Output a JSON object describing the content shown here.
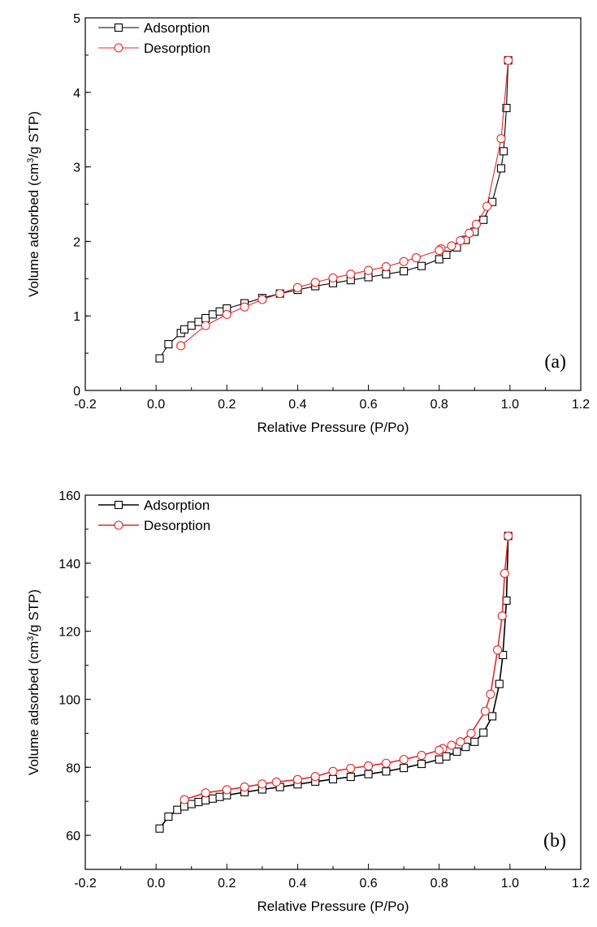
{
  "chart_data": [
    {
      "type": "line",
      "panel_label": "(a)",
      "xlabel": "Relative Pressure (P/Po)",
      "ylabel_main": "Volume adsorbed (cm",
      "ylabel_sup": "3",
      "ylabel_rest": "/g STP)",
      "xlim": [
        -0.2,
        1.2
      ],
      "ylim": [
        0,
        5
      ],
      "xticks": [
        "-0.2",
        "0.0",
        "0.2",
        "0.4",
        "0.6",
        "0.8",
        "1.0",
        "1.2"
      ],
      "yticks": [
        "0",
        "1",
        "2",
        "3",
        "4",
        "5"
      ],
      "legend_position": "top-left",
      "grid": false,
      "series": [
        {
          "name": "Adsorption",
          "marker": "square",
          "color": "#000000",
          "x": [
            0.01,
            0.035,
            0.07,
            0.08,
            0.1,
            0.12,
            0.14,
            0.16,
            0.18,
            0.2,
            0.25,
            0.3,
            0.35,
            0.4,
            0.45,
            0.5,
            0.55,
            0.6,
            0.65,
            0.7,
            0.75,
            0.8,
            0.82,
            0.85,
            0.875,
            0.9,
            0.925,
            0.95,
            0.975,
            0.982,
            0.99,
            0.995
          ],
          "y": [
            0.43,
            0.62,
            0.77,
            0.82,
            0.87,
            0.92,
            0.97,
            1.02,
            1.06,
            1.1,
            1.17,
            1.24,
            1.3,
            1.35,
            1.4,
            1.44,
            1.48,
            1.52,
            1.56,
            1.6,
            1.67,
            1.76,
            1.82,
            1.92,
            2.02,
            2.13,
            2.29,
            2.53,
            2.98,
            3.21,
            3.79,
            4.43
          ]
        },
        {
          "name": "Desorption",
          "marker": "circle",
          "color": "#e8282b",
          "x": [
            0.995,
            0.975,
            0.935,
            0.905,
            0.885,
            0.86,
            0.835,
            0.805,
            0.8,
            0.735,
            0.7,
            0.65,
            0.6,
            0.55,
            0.5,
            0.45,
            0.4,
            0.35,
            0.3,
            0.25,
            0.2,
            0.14,
            0.07
          ],
          "y": [
            4.43,
            3.38,
            2.47,
            2.23,
            2.11,
            2.01,
            1.94,
            1.9,
            1.88,
            1.78,
            1.73,
            1.66,
            1.61,
            1.56,
            1.51,
            1.45,
            1.38,
            1.3,
            1.22,
            1.12,
            1.02,
            0.87,
            0.6
          ]
        }
      ]
    },
    {
      "type": "line",
      "panel_label": "(b)",
      "xlabel": "Relative Pressure (P/Po)",
      "ylabel_main": "Volume adsorbed (cm",
      "ylabel_sup": "3",
      "ylabel_rest": "/g STP)",
      "xlim": [
        -0.2,
        1.2
      ],
      "ylim": [
        50,
        160
      ],
      "xticks": [
        "-0.2",
        "0.0",
        "0.2",
        "0.4",
        "0.6",
        "0.8",
        "1.0",
        "1.2"
      ],
      "yticks": [
        "60",
        "80",
        "100",
        "120",
        "140",
        "160"
      ],
      "legend_position": "top-left",
      "grid": false,
      "series": [
        {
          "name": "Adsorption",
          "marker": "square",
          "color": "#000000",
          "x": [
            0.01,
            0.035,
            0.06,
            0.08,
            0.1,
            0.12,
            0.14,
            0.16,
            0.18,
            0.2,
            0.25,
            0.3,
            0.35,
            0.4,
            0.45,
            0.5,
            0.55,
            0.6,
            0.65,
            0.7,
            0.75,
            0.8,
            0.82,
            0.85,
            0.875,
            0.9,
            0.925,
            0.95,
            0.97,
            0.98,
            0.99,
            0.995
          ],
          "y": [
            62,
            65.5,
            67.5,
            68.5,
            69.2,
            69.8,
            70.3,
            70.8,
            71.3,
            71.8,
            72.7,
            73.5,
            74.2,
            75,
            75.8,
            76.5,
            77.2,
            78,
            78.8,
            79.8,
            81,
            82.3,
            83.2,
            84.6,
            86,
            87.5,
            90.2,
            95,
            104.5,
            113,
            129,
            148
          ]
        },
        {
          "name": "Desorption",
          "marker": "circle",
          "color": "#e8282b",
          "x": [
            0.995,
            0.985,
            0.978,
            0.965,
            0.945,
            0.93,
            0.89,
            0.86,
            0.835,
            0.81,
            0.8,
            0.75,
            0.7,
            0.65,
            0.6,
            0.55,
            0.5,
            0.45,
            0.4,
            0.34,
            0.3,
            0.25,
            0.2,
            0.14,
            0.08
          ],
          "y": [
            148,
            137,
            124.5,
            114.5,
            101.5,
            96.5,
            90,
            87.5,
            86.5,
            85.5,
            85,
            83.5,
            82.3,
            81.2,
            80.4,
            79.7,
            78.8,
            77.3,
            76.4,
            75.7,
            75.1,
            74.2,
            73.4,
            72.5,
            70.5
          ]
        }
      ]
    }
  ]
}
